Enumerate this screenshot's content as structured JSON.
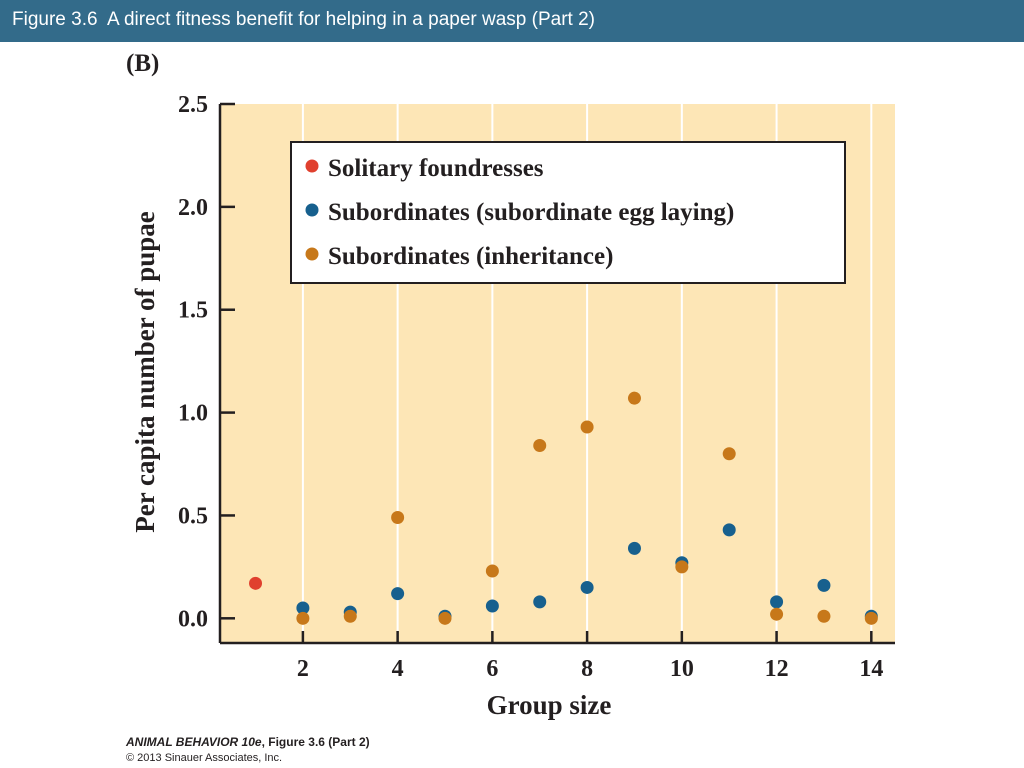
{
  "header": {
    "title": "Figure 3.6  A direct fitness benefit for helping in a paper wasp (Part 2)"
  },
  "panel_label": "(B)",
  "colors": {
    "header_bg": "#336b8a",
    "plot_bg": "#fde6b6",
    "grid": "#ffffff",
    "solitary": "#e0402e",
    "egg_laying": "#17608e",
    "inheritance": "#c7781a"
  },
  "chart_data": {
    "type": "scatter",
    "xlabel": "Group size",
    "ylabel": "Per capita number of pupae",
    "xlim": [
      0.25,
      14.5
    ],
    "ylim": [
      -0.12,
      2.5
    ],
    "x_ticks": [
      2,
      4,
      6,
      8,
      10,
      12,
      14
    ],
    "y_ticks": [
      0.0,
      0.5,
      1.0,
      1.5,
      2.0,
      2.5
    ],
    "y_tick_labels": [
      "0.0",
      "0.5",
      "1.0",
      "1.5",
      "2.0",
      "2.5"
    ],
    "grid": "vertical lines at each x tick",
    "legend_position": "top",
    "series": [
      {
        "name": "Solitary foundresses",
        "color": "#e0402e",
        "points": [
          [
            1,
            0.17
          ]
        ]
      },
      {
        "name": "Subordinates (subordinate egg laying)",
        "color": "#17608e",
        "points": [
          [
            2,
            0.05
          ],
          [
            3,
            0.03
          ],
          [
            4,
            0.12
          ],
          [
            5,
            0.01
          ],
          [
            6,
            0.06
          ],
          [
            7,
            0.08
          ],
          [
            8,
            0.15
          ],
          [
            9,
            0.34
          ],
          [
            10,
            0.27
          ],
          [
            11,
            0.43
          ],
          [
            12,
            0.08
          ],
          [
            13,
            0.16
          ],
          [
            14,
            0.01
          ]
        ]
      },
      {
        "name": "Subordinates (inheritance)",
        "color": "#c7781a",
        "points": [
          [
            2,
            0.0
          ],
          [
            3,
            0.01
          ],
          [
            4,
            0.49
          ],
          [
            5,
            0.0
          ],
          [
            6,
            0.23
          ],
          [
            7,
            0.84
          ],
          [
            8,
            0.93
          ],
          [
            9,
            1.07
          ],
          [
            10,
            0.25
          ],
          [
            11,
            0.8
          ],
          [
            12,
            0.02
          ],
          [
            13,
            0.01
          ],
          [
            14,
            0.0
          ]
        ]
      }
    ]
  },
  "footer": {
    "book": "ANIMAL BEHAVIOR 10e",
    "figure": ", Figure 3.6 (Part 2)",
    "copyright": "© 2013 Sinauer Associates, Inc."
  }
}
